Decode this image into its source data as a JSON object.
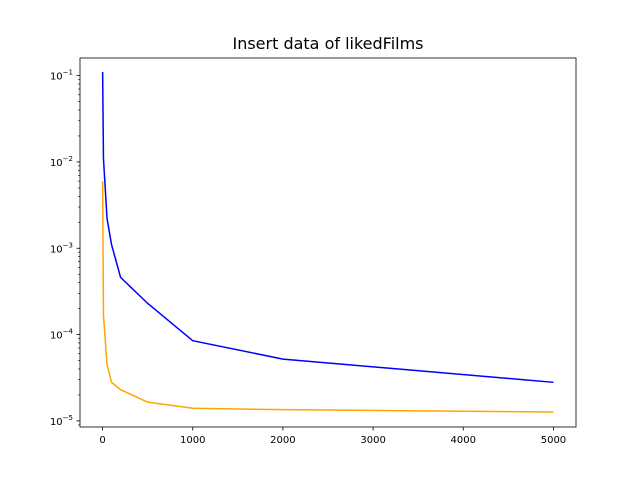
{
  "chart_data": {
    "type": "line",
    "title": "Insert data of likedFilms",
    "xlabel": "",
    "ylabel": "",
    "yscale": "log",
    "xlim": [
      -250,
      5250
    ],
    "ylim": [
      8.5e-06,
      0.16
    ],
    "grid": false,
    "x_ticks": [
      0,
      1000,
      2000,
      3000,
      4000,
      5000
    ],
    "y_ticks": [
      {
        "value": 1e-05,
        "base": "10",
        "exp": "−5"
      },
      {
        "value": 0.0001,
        "base": "10",
        "exp": "−4"
      },
      {
        "value": 0.001,
        "base": "10",
        "exp": "−3"
      },
      {
        "value": 0.01,
        "base": "10",
        "exp": "−2"
      },
      {
        "value": 0.1,
        "base": "10",
        "exp": "−1"
      }
    ],
    "series": [
      {
        "color": "#0000ff",
        "x": [
          1,
          10,
          50,
          100,
          200,
          500,
          1000,
          2000,
          5000
        ],
        "y": [
          0.11,
          0.011,
          0.0022,
          0.0011,
          0.00046,
          0.00023,
          8.5e-05,
          5.2e-05,
          2.8e-05
        ]
      },
      {
        "color": "#ffa500",
        "x": [
          1,
          10,
          50,
          100,
          200,
          500,
          1000,
          2000,
          5000
        ],
        "y": [
          0.006,
          0.00017,
          4.5e-05,
          2.8e-05,
          2.3e-05,
          1.65e-05,
          1.4e-05,
          1.35e-05,
          1.27e-05
        ]
      }
    ]
  }
}
